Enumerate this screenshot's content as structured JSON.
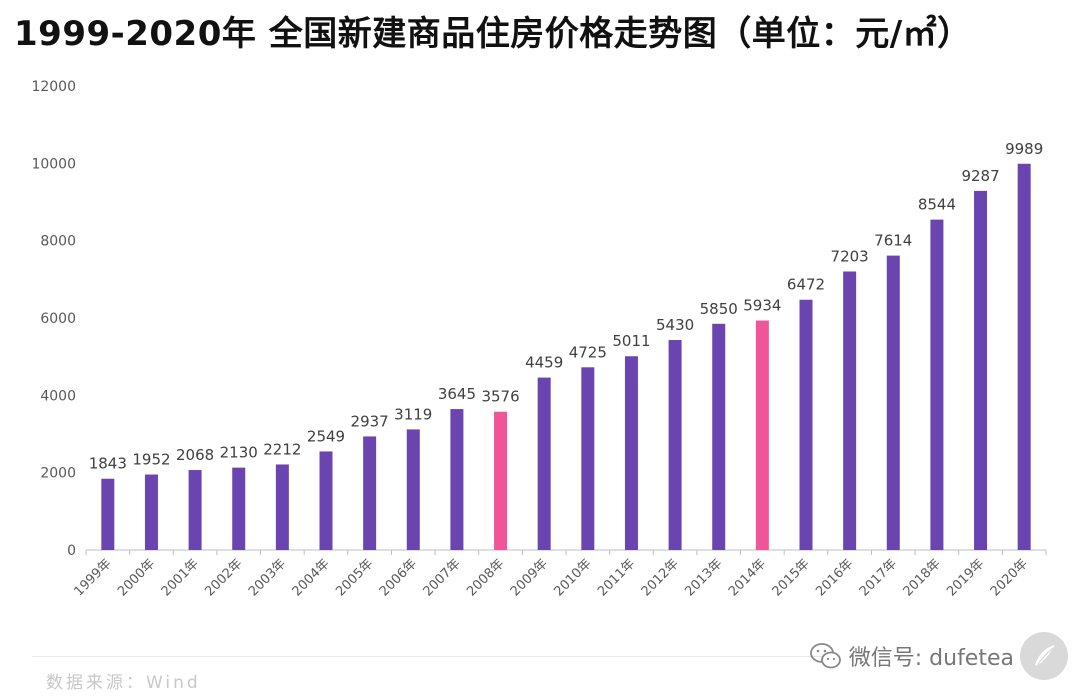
{
  "title": "1999-2020年 全国新建商品住房价格走势图（单位：元/㎡）",
  "source": "数据来源：Wind",
  "watermark": "微信号: dufetea",
  "colors": {
    "bar": "#6a45b0",
    "highlight": "#f0559a",
    "axis": "#bfbfbf"
  },
  "chart_data": {
    "type": "bar",
    "categories": [
      "1999年",
      "2000年",
      "2001年",
      "2002年",
      "2003年",
      "2004年",
      "2005年",
      "2006年",
      "2007年",
      "2008年",
      "2009年",
      "2010年",
      "2011年",
      "2012年",
      "2013年",
      "2014年",
      "2015年",
      "2016年",
      "2017年",
      "2018年",
      "2019年",
      "2020年"
    ],
    "values": [
      1843,
      1952,
      2068,
      2130,
      2212,
      2549,
      2937,
      3119,
      3645,
      3576,
      4459,
      4725,
      5011,
      5430,
      5850,
      5934,
      6472,
      7203,
      7614,
      8544,
      9287,
      9989
    ],
    "highlighted": [
      "2008年",
      "2014年"
    ],
    "ylim": [
      0,
      12000
    ],
    "yticks": [
      0,
      2000,
      4000,
      6000,
      8000,
      10000,
      12000
    ],
    "grid": false,
    "data_labels": true
  }
}
